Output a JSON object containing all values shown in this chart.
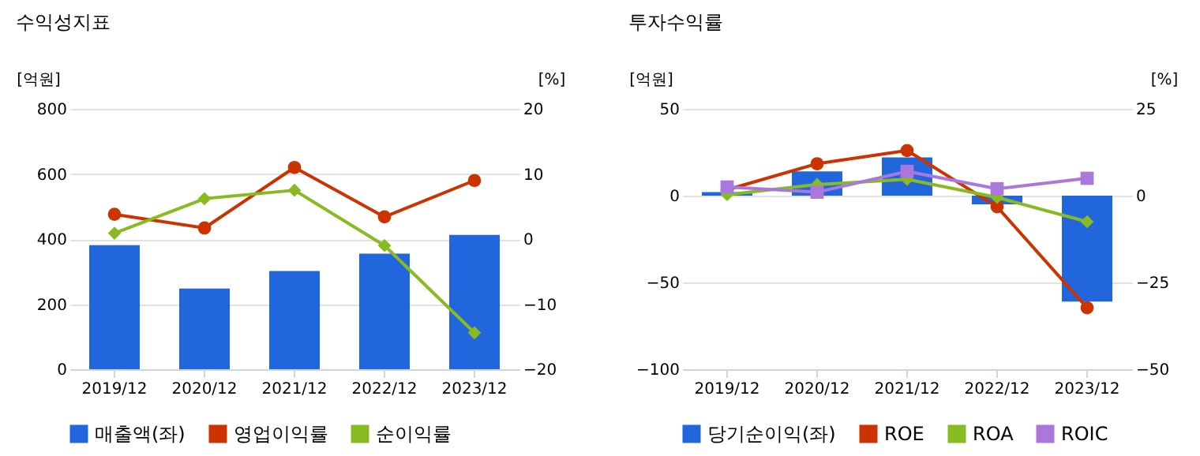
{
  "chart_data": [
    {
      "type": "bar",
      "title": "수익성지표",
      "ylabel": "[억원]",
      "y2label": "[%]",
      "categories": [
        "2019/12",
        "2020/12",
        "2021/12",
        "2022/12",
        "2023/12"
      ],
      "series": [
        {
          "name": "매출액(좌)",
          "color": "#2266dd",
          "values": [
            381,
            248,
            302,
            355,
            413
          ]
        },
        {
          "name": "영업이익률",
          "type": "line",
          "axis": "y2",
          "marker": "circle",
          "color": "#cc3300",
          "values": [
            3.8,
            1.7,
            11.0,
            3.4,
            9.0
          ]
        },
        {
          "name": "순이익률",
          "type": "line",
          "axis": "y2",
          "marker": "diamond",
          "color": "#88bb22",
          "values": [
            0.9,
            6.2,
            7.5,
            -1.0,
            -14.4
          ]
        }
      ],
      "ylim": [
        0,
        800
      ],
      "yticks": [
        0,
        200,
        400,
        600,
        800
      ],
      "y2lim": [
        -20,
        20
      ],
      "y2ticks": [
        -20,
        -10,
        0,
        10,
        20
      ],
      "grid": "y",
      "legend": "bottom"
    },
    {
      "type": "bar",
      "title": "투자수익률",
      "ylabel": "[억원]",
      "y2label": "[%]",
      "categories": [
        "2019/12",
        "2020/12",
        "2021/12",
        "2022/12",
        "2023/12"
      ],
      "series": [
        {
          "name": "당기순이익(좌)",
          "color": "#2266dd",
          "values": [
            2,
            14,
            22,
            -5,
            -61
          ]
        },
        {
          "name": "ROE",
          "type": "line",
          "axis": "y2",
          "marker": "circle",
          "color": "#cc3300",
          "values": [
            1.7,
            9.2,
            13,
            -3.2,
            -32.3
          ]
        },
        {
          "name": "ROA",
          "type": "line",
          "axis": "y2",
          "marker": "diamond",
          "color": "#88bb22",
          "values": [
            0.3,
            3.2,
            4.7,
            -0.5,
            -7.5
          ]
        },
        {
          "name": "ROIC",
          "type": "line",
          "axis": "y2",
          "marker": "square",
          "color": "#aa77dd",
          "values": [
            2.5,
            1,
            7,
            2,
            5
          ]
        }
      ],
      "ylim": [
        -100,
        50
      ],
      "yticks": [
        -100,
        -50,
        0,
        50
      ],
      "y2lim": [
        -50,
        25
      ],
      "y2ticks": [
        -50,
        -25,
        0,
        25
      ],
      "grid": "y",
      "legend": "bottom"
    }
  ]
}
